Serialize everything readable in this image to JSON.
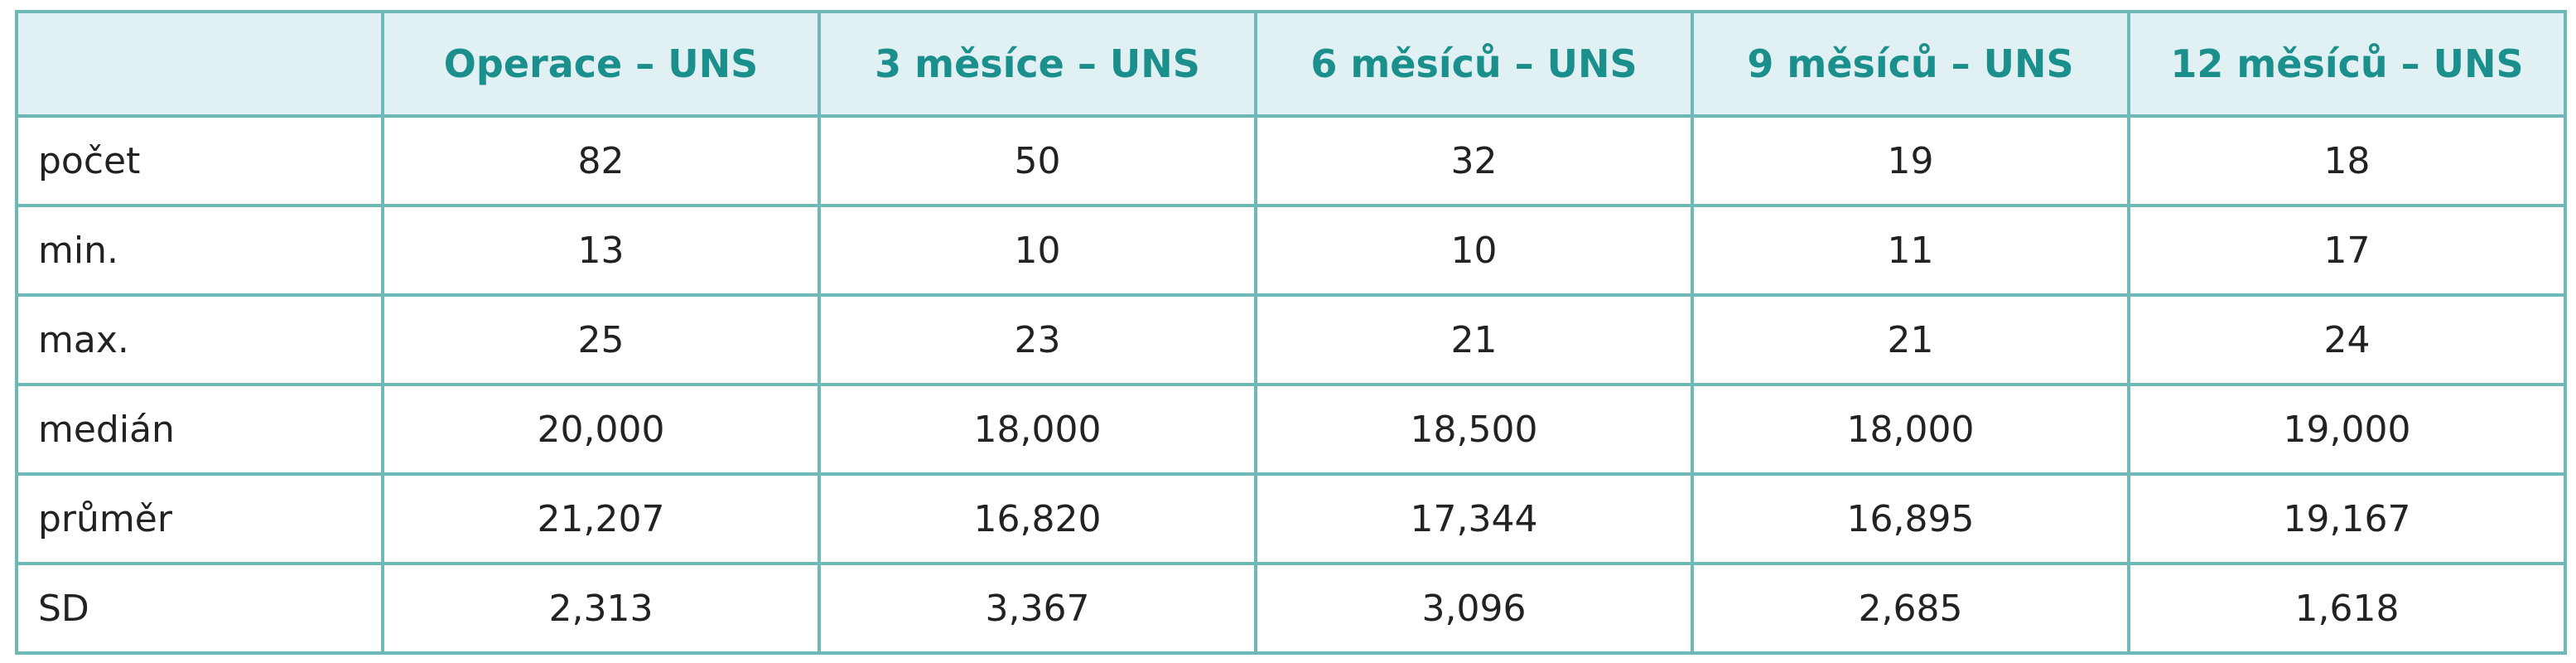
{
  "table": {
    "columns": [
      "",
      "Operace – UNS",
      "3 měsíce – UNS",
      "6 měsíců – UNS",
      "9 měsíců – UNS",
      "12 měsíců – UNS"
    ],
    "rows": [
      {
        "label": "počet",
        "values": [
          "82",
          "50",
          "32",
          "19",
          "18"
        ]
      },
      {
        "label": "min.",
        "values": [
          "13",
          "10",
          "10",
          "11",
          "17"
        ]
      },
      {
        "label": "max.",
        "values": [
          "25",
          "23",
          "21",
          "21",
          "24"
        ]
      },
      {
        "label": "medián",
        "values": [
          "20,000",
          "18,000",
          "18,500",
          "18,000",
          "19,000"
        ]
      },
      {
        "label": "průměr",
        "values": [
          "21,207",
          "16,820",
          "17,344",
          "16,895",
          "19,167"
        ]
      },
      {
        "label": "SD",
        "values": [
          "2,313",
          "3,367",
          "3,096",
          "2,685",
          "1,618"
        ]
      }
    ]
  },
  "colors": {
    "header_background": "#e0f0f3",
    "header_text": "#1b8f8c",
    "border": "#6fb8b8",
    "body_text": "#222222"
  }
}
